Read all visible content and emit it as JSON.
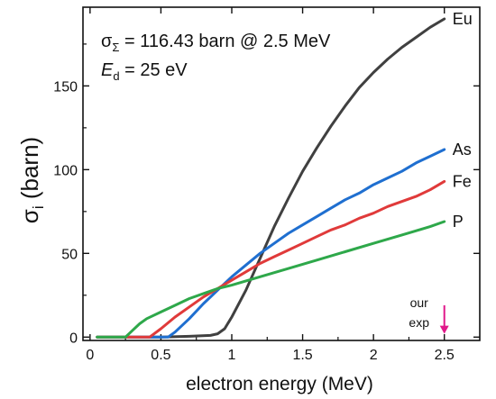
{
  "chart_data": {
    "type": "line",
    "xlabel": "electron energy (MeV)",
    "ylabel_symbol": "σ",
    "ylabel_sub": "i",
    "ylabel_unit": " (barn)",
    "xlim": [
      -0.05,
      2.75
    ],
    "ylim": [
      -2,
      197
    ],
    "x_ticks": [
      0,
      0.5,
      1,
      1.5,
      2,
      2.5
    ],
    "x_tick_labels": [
      "0",
      "0.5",
      "1",
      "1.5",
      "2",
      "2.5"
    ],
    "y_ticks": [
      0,
      50,
      100,
      150
    ],
    "y_tick_labels": [
      "0",
      "50",
      "100",
      "150"
    ],
    "grid": false,
    "annotation_line1_sigma": "σ",
    "annotation_line1_sub": "Σ",
    "annotation_line1_text": " = 116.43 barn @ 2.5 MeV",
    "annotation_line2_E": "E",
    "annotation_line2_sub": "d",
    "annotation_line2_text": " = 25 eV",
    "marker_text_line1": "our",
    "marker_text_line2": "exp",
    "marker_x": 2.5,
    "marker_color": "#e0198a",
    "series": [
      {
        "name": "Eu",
        "color": "#404040",
        "x": [
          0.05,
          0.5,
          0.7,
          0.85,
          0.9,
          0.95,
          1.0,
          1.1,
          1.2,
          1.3,
          1.4,
          1.5,
          1.6,
          1.7,
          1.8,
          1.9,
          2.0,
          2.1,
          2.2,
          2.3,
          2.4,
          2.5
        ],
        "y": [
          0,
          0,
          0.5,
          1,
          2,
          5,
          12,
          28,
          47,
          66,
          83,
          99,
          113,
          126,
          138,
          149,
          158,
          166,
          173,
          179,
          185,
          190
        ]
      },
      {
        "name": "As",
        "color": "#1f6fd0",
        "x": [
          0.05,
          0.55,
          0.6,
          0.7,
          0.8,
          0.9,
          1.0,
          1.1,
          1.2,
          1.3,
          1.4,
          1.5,
          1.6,
          1.7,
          1.8,
          1.9,
          2.0,
          2.1,
          2.2,
          2.3,
          2.4,
          2.5
        ],
        "y": [
          0,
          0,
          3,
          11,
          20,
          28,
          36,
          43,
          50,
          56,
          62,
          67,
          72,
          77,
          82,
          86,
          91,
          95,
          99,
          104,
          108,
          112
        ]
      },
      {
        "name": "Fe",
        "color": "#e03a3a",
        "x": [
          0.05,
          0.42,
          0.5,
          0.6,
          0.7,
          0.8,
          0.9,
          1.0,
          1.1,
          1.2,
          1.3,
          1.4,
          1.5,
          1.6,
          1.7,
          1.8,
          1.9,
          2.0,
          2.1,
          2.2,
          2.3,
          2.4,
          2.5
        ],
        "y": [
          0,
          0,
          5,
          12,
          18,
          24,
          29,
          34,
          39,
          44,
          48,
          52,
          56,
          60,
          64,
          67,
          71,
          74,
          78,
          81,
          84,
          88,
          93
        ]
      },
      {
        "name": "P",
        "color": "#2ea84a",
        "x": [
          0.05,
          0.25,
          0.3,
          0.35,
          0.4,
          0.5,
          0.6,
          0.7,
          0.8,
          0.9,
          1.0,
          1.2,
          1.4,
          1.6,
          1.8,
          2.0,
          2.2,
          2.4,
          2.5
        ],
        "y": [
          0,
          0,
          4,
          8,
          11,
          15,
          19,
          23,
          26,
          29,
          31,
          36,
          41,
          46,
          51,
          56,
          61,
          66,
          69
        ]
      }
    ]
  }
}
